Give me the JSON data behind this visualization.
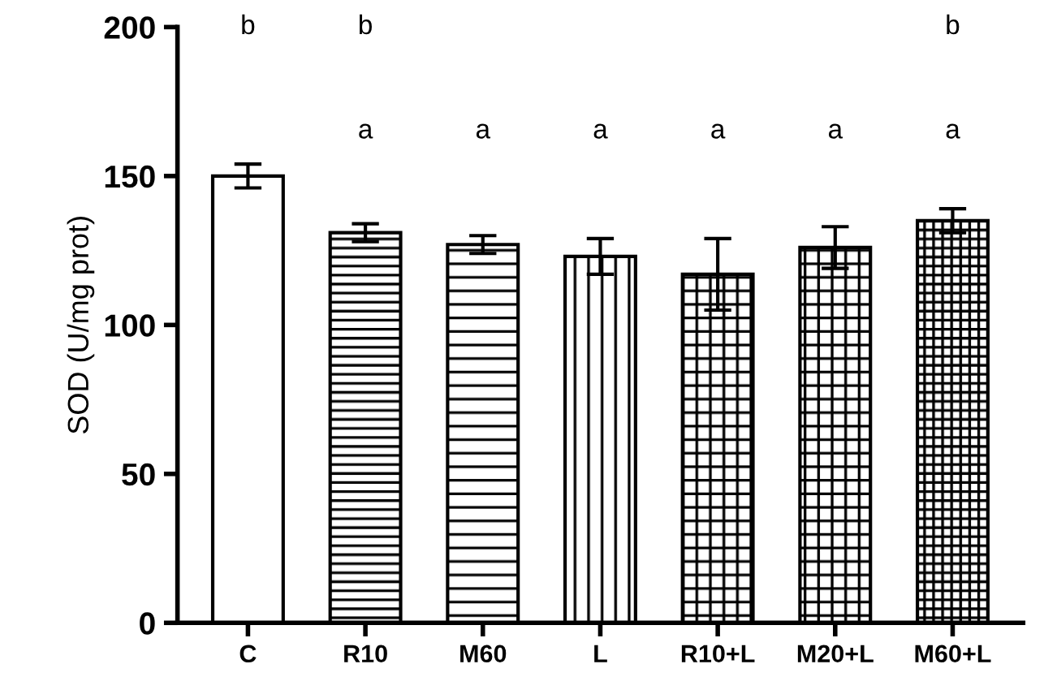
{
  "chart_data": {
    "type": "bar",
    "ylabel": "SOD (U/mg prot)",
    "categories": [
      "C",
      "R10",
      "M60",
      "L",
      "R10+L",
      "M20+L",
      "M60+L"
    ],
    "values": [
      150,
      131,
      127,
      123,
      117,
      126,
      135
    ],
    "errors": [
      4,
      3,
      3,
      6,
      12,
      7,
      4
    ],
    "color": "#000000",
    "ylim": [
      0,
      200
    ],
    "yticks": [
      0,
      50,
      100,
      150,
      200
    ],
    "grid": false,
    "annotations": [
      "b",
      "b",
      "b",
      "a",
      "a",
      "a",
      "a",
      "a",
      "a"
    ]
  }
}
